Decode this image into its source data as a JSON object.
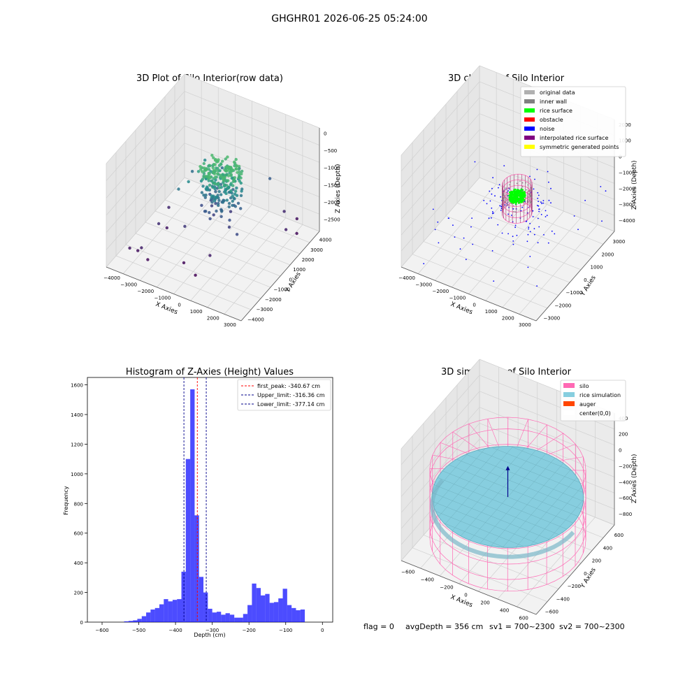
{
  "figure": {
    "suptitle": "GHGHR01 2026-06-25 05:24:00",
    "status_line": {
      "flag": "flag = 0",
      "avg_depth": "avgDepth = 356 cm",
      "sv1": "sv1 = 700~2300",
      "sv2": "sv2 = 700~2300"
    }
  },
  "chart_data": [
    {
      "type": "scatter",
      "projection": "3d",
      "title": "3D Plot of Silo Interior(row data)",
      "xlabel": "X Axies",
      "ylabel": "Y Axies",
      "zlabel": "Z Axies (Depth)",
      "x_ticks": [
        "−4000",
        "−3000",
        "−2000",
        "−1000",
        "0",
        "1000",
        "2000",
        "3000"
      ],
      "y_ticks": [
        "−4000",
        "−3000",
        "−2000",
        "−1000",
        "0",
        "1000",
        "2000",
        "3000",
        "4000"
      ],
      "z_ticks": [
        "0",
        "−500",
        "−1000",
        "−1500",
        "−2000",
        "−2500"
      ],
      "xlim": [
        -4300,
        3200
      ],
      "ylim": [
        -4300,
        4300
      ],
      "zlim": [
        -2800,
        100
      ],
      "colormap": "viridis",
      "cluster": {
        "center": [
          -300,
          500
        ],
        "radius": 1100,
        "z_top": -600,
        "z_bottom": -2000,
        "count": 260
      },
      "outliers": [
        [
          -3500,
          -3300,
          -2400
        ],
        [
          -3200,
          -3000,
          -2500
        ],
        [
          -2900,
          -3200,
          -2300
        ],
        [
          -2600,
          -3100,
          -2600
        ],
        [
          -2800,
          -1500,
          -2100
        ],
        [
          -2200,
          -500,
          -1300
        ],
        [
          -1800,
          -200,
          -1100
        ],
        [
          -1500,
          300,
          -900
        ],
        [
          -1000,
          -2300,
          -2600
        ],
        [
          -200,
          -2600,
          -2700
        ],
        [
          200,
          -1800,
          -2300
        ],
        [
          -800,
          800,
          -1800
        ],
        [
          -2400,
          1400,
          -1400
        ],
        [
          -1900,
          1800,
          -1100
        ],
        [
          -1300,
          2500,
          -1400
        ],
        [
          -700,
          3200,
          -1500
        ],
        [
          800,
          3600,
          -1600
        ],
        [
          1800,
          3200,
          -2200
        ],
        [
          2200,
          3800,
          -2500
        ],
        [
          2600,
          3000,
          -2600
        ],
        [
          1200,
          -800,
          -1800
        ],
        [
          -1500,
          -1200,
          -2000
        ],
        [
          -3100,
          200,
          -2200
        ],
        [
          2400,
          2200,
          -2300
        ],
        [
          -2700,
          -800,
          -2400
        ]
      ]
    },
    {
      "type": "scatter",
      "projection": "3d",
      "title": "3D classify of Silo Interior",
      "xlabel": "X Axies",
      "ylabel": "Y Axies",
      "zlabel": "Z Axies (Depth)",
      "x_ticks": [
        "−4000",
        "−3000",
        "−2000",
        "−1000",
        "0",
        "1000",
        "2000",
        "3000"
      ],
      "y_ticks": [
        "−3000",
        "−2000",
        "−1000",
        "0",
        "1000",
        "2000",
        "3000"
      ],
      "z_ticks": [
        "2000",
        "1000",
        "0",
        "−1000",
        "−2000",
        "−3000",
        "−4000"
      ],
      "xlim": [
        -4300,
        3200
      ],
      "ylim": [
        -3300,
        3400
      ],
      "zlim": [
        -4500,
        2300
      ],
      "legend": {
        "placement": "upper-right",
        "entries": [
          {
            "label": "original data",
            "color": "#b0b0b0"
          },
          {
            "label": "inner wall",
            "color": "#808080"
          },
          {
            "label": "rice surface",
            "color": "#00ff00"
          },
          {
            "label": "obstacle",
            "color": "#ff0000"
          },
          {
            "label": "noise",
            "color": "#0000ff"
          },
          {
            "label": "interpolated rice surface",
            "color": "#800080"
          },
          {
            "label": "symmetric generated points",
            "color": "#ffff00"
          }
        ]
      },
      "silo_ring": {
        "center": [
          0,
          0
        ],
        "radius": 700,
        "z_top": -300,
        "z_bottom": -2000
      },
      "rice_surface": {
        "center": [
          0,
          0
        ],
        "radius": 380,
        "z": -1000
      },
      "noise_count": 140
    },
    {
      "type": "bar",
      "title": "Histogram of Z-Axies (Height) Values",
      "xlabel": "Depth (cm)",
      "ylabel": "Frequency",
      "xlim": [
        -640,
        28
      ],
      "ylim": [
        0,
        1650
      ],
      "x_ticks": [
        -600,
        -500,
        -400,
        -300,
        -200,
        -100,
        0
      ],
      "x_tick_labels": [
        "−600",
        "−500",
        "−400",
        "−300",
        "−200",
        "−100",
        "0"
      ],
      "y_ticks": [
        0,
        200,
        400,
        600,
        800,
        1000,
        1200,
        1400,
        1600
      ],
      "bar_color": "#0000ff",
      "bin_width": 12,
      "bins_start": -540,
      "counts": [
        5,
        8,
        12,
        22,
        40,
        65,
        85,
        95,
        120,
        155,
        140,
        150,
        155,
        340,
        1100,
        1570,
        720,
        305,
        200,
        90,
        65,
        70,
        50,
        60,
        50,
        30,
        30,
        55,
        115,
        260,
        230,
        180,
        190,
        130,
        135,
        160,
        225,
        115,
        95,
        80,
        85
      ],
      "vlines": [
        {
          "label": "first_peak: -340.67 cm",
          "x": -340.67,
          "color": "#ff0000"
        },
        {
          "label": "Upper_limit: -316.36 cm",
          "x": -316.36,
          "color": "#00008b"
        },
        {
          "label": "Lower_limit: -377.14 cm",
          "x": -377.14,
          "color": "#00008b"
        }
      ],
      "legend": {
        "placement": "upper-right"
      }
    },
    {
      "type": "surface",
      "projection": "3d",
      "title": "3D simulation of Silo Interior",
      "xlabel": "X Axies",
      "ylabel": "Y Axies",
      "zlabel": "Z Axies (Depth)",
      "x_ticks": [
        "−600",
        "−400",
        "−200",
        "0",
        "200",
        "400",
        "600"
      ],
      "y_ticks": [
        "−600",
        "−400",
        "−200",
        "0",
        "200",
        "400",
        "600"
      ],
      "z_ticks": [
        "400",
        "200",
        "0",
        "−200",
        "−400",
        "−600",
        "−800"
      ],
      "xlim": [
        -700,
        700
      ],
      "ylim": [
        -700,
        700
      ],
      "zlim": [
        -950,
        500
      ],
      "legend": {
        "placement": "upper-right",
        "entries": [
          {
            "label": "silo",
            "color": "#ff69b4"
          },
          {
            "label": "rice simulation",
            "color": "#87cedf"
          },
          {
            "label": "auger",
            "color": "#ff4500"
          },
          {
            "label": "center(0,0)",
            "color": "#ffffff"
          }
        ]
      },
      "silo": {
        "radius": 700,
        "z_top": 0,
        "z_bottom": -900
      },
      "rice_surface_z": -356,
      "center_marker": [
        0,
        0,
        0
      ]
    }
  ]
}
